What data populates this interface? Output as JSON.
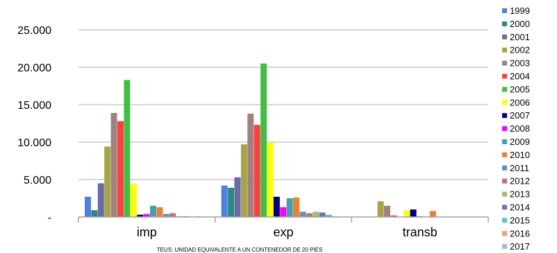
{
  "chart_data": {
    "type": "bar",
    "categories": [
      "imp",
      "exp",
      "transb"
    ],
    "yticks": [
      "-",
      "5.000",
      "10.000",
      "15.000",
      "20.000",
      "25.000"
    ],
    "ylim": [
      0,
      25000
    ],
    "grid": true,
    "legend_position": "right",
    "footnote": "TEUS:  UNIDAD EQUIVALENTE A UN CONTENEDOR DE 20 PIES",
    "series": [
      {
        "name": "1999",
        "color": "#4f7fe0",
        "values": [
          2700,
          4200,
          0
        ]
      },
      {
        "name": "2000",
        "color": "#2a8a80",
        "values": [
          900,
          3900,
          0
        ]
      },
      {
        "name": "2001",
        "color": "#6a6aa8",
        "values": [
          4500,
          5300,
          0
        ]
      },
      {
        "name": "2002",
        "color": "#a5a545",
        "values": [
          9400,
          9700,
          2100
        ]
      },
      {
        "name": "2003",
        "color": "#a08080",
        "values": [
          13900,
          13800,
          1500
        ]
      },
      {
        "name": "2004",
        "color": "#ff4040",
        "values": [
          12800,
          12300,
          200
        ]
      },
      {
        "name": "2005",
        "color": "#40c040",
        "values": [
          18300,
          20500,
          0
        ]
      },
      {
        "name": "2006",
        "color": "#ffff00",
        "values": [
          4400,
          9900,
          900
        ]
      },
      {
        "name": "2007",
        "color": "#000080",
        "values": [
          300,
          2700,
          1000
        ]
      },
      {
        "name": "2008",
        "color": "#ff00ff",
        "values": [
          400,
          1300,
          100
        ]
      },
      {
        "name": "2009",
        "color": "#40a0b0",
        "values": [
          1500,
          2500,
          0
        ]
      },
      {
        "name": "2010",
        "color": "#f08030",
        "values": [
          1300,
          2600,
          800
        ]
      },
      {
        "name": "2011",
        "color": "#6090c0",
        "values": [
          400,
          700,
          0
        ]
      },
      {
        "name": "2012",
        "color": "#c07070",
        "values": [
          500,
          500,
          0
        ]
      },
      {
        "name": "2013",
        "color": "#a0c070",
        "values": [
          100,
          700,
          0
        ]
      },
      {
        "name": "2014",
        "color": "#8070a8",
        "values": [
          100,
          600,
          0
        ]
      },
      {
        "name": "2015",
        "color": "#60c0d0",
        "values": [
          50,
          300,
          0
        ]
      },
      {
        "name": "2016",
        "color": "#f0a070",
        "values": [
          100,
          100,
          0
        ]
      },
      {
        "name": "2017",
        "color": "#a0b8e0",
        "values": [
          50,
          50,
          0
        ]
      }
    ]
  }
}
